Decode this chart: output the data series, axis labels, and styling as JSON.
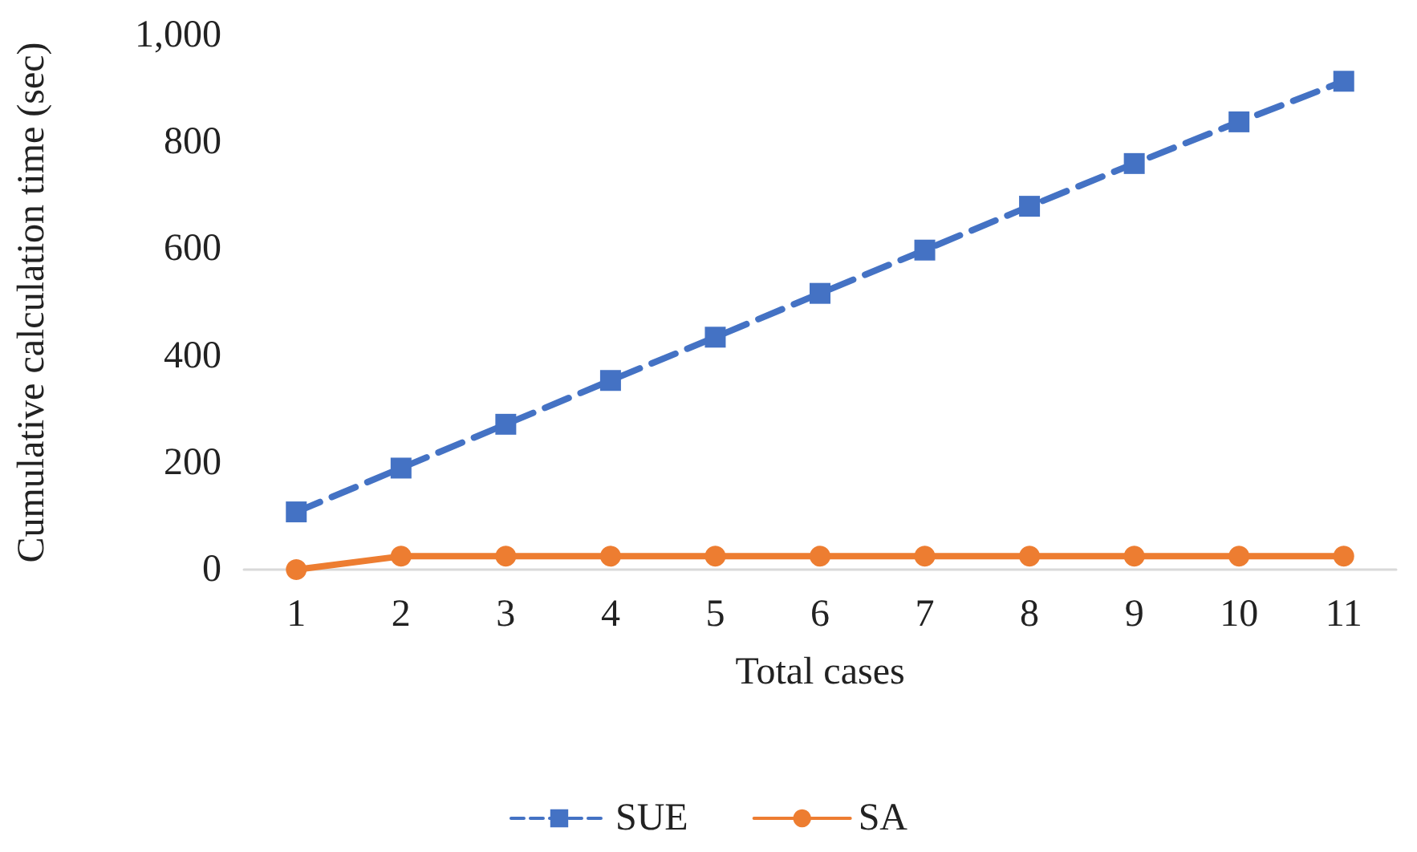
{
  "chart_data": {
    "type": "line",
    "xlabel": "Total cases",
    "ylabel": "Cumulative calculation time (sec)",
    "categories": [
      "1",
      "2",
      "3",
      "4",
      "5",
      "6",
      "7",
      "8",
      "9",
      "10",
      "11"
    ],
    "series": [
      {
        "name": "SUE",
        "color": "#4472c4",
        "marker": "square",
        "line_style": "dashed",
        "values": [
          108,
          190,
          272,
          354,
          435,
          517,
          598,
          680,
          760,
          838,
          914
        ]
      },
      {
        "name": "SA",
        "color": "#ed7d31",
        "marker": "circle",
        "line_style": "solid",
        "values": [
          0,
          25,
          25,
          25,
          25,
          25,
          25,
          25,
          25,
          25,
          25
        ]
      }
    ],
    "ylim": [
      0,
      1000
    ],
    "yticks": [
      {
        "value": 0,
        "label": "0"
      },
      {
        "value": 200,
        "label": "200"
      },
      {
        "value": 400,
        "label": "400"
      },
      {
        "value": 600,
        "label": "600"
      },
      {
        "value": 800,
        "label": "800"
      },
      {
        "value": 1000,
        "label": "1,000"
      }
    ],
    "grid": false,
    "legend": "bottom"
  }
}
